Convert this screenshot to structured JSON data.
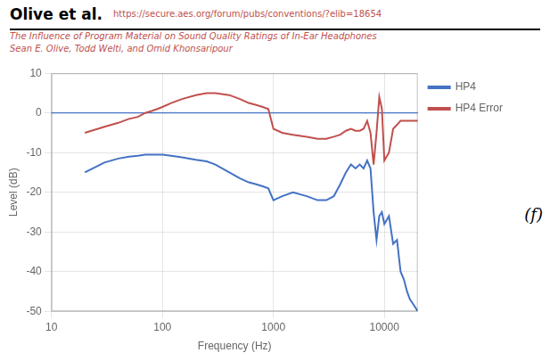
{
  "chart_data": {
    "type": "line",
    "title": "Olive et al.",
    "subtitle": [
      "The Influence of Program Material on Sound Quality Ratings of In-Ear Headphones",
      "Sean E. Olive, Todd Welti, and Omid Khonsaripour"
    ],
    "annotations": [
      {
        "text": "https://secure.aes.org/forum/pubs/conventions/?elib=18654"
      },
      {
        "text": "(f)"
      },
      {
        "y": 0,
        "color": "#4472C4"
      }
    ],
    "x_label": "Frequency (Hz)",
    "y_label": "Level (dB)",
    "log": "x",
    "x": [
      20,
      30,
      40,
      50,
      60,
      70,
      80,
      90,
      100,
      120,
      150,
      200,
      250,
      300,
      400,
      500,
      600,
      700,
      800,
      900,
      1000,
      1200,
      1500,
      2000,
      2500,
      3000,
      3500,
      4000,
      4500,
      5000,
      5500,
      6000,
      6500,
      7000,
      7500,
      8000,
      8500,
      9000,
      9500,
      10000,
      11000,
      12000,
      13000,
      14000,
      15000,
      16000,
      17000,
      18000,
      20000
    ],
    "series": [
      {
        "name": "HP4",
        "color": "#4472C4",
        "values": [
          -15,
          -12.5,
          -11.5,
          -11,
          -10.8,
          -10.5,
          -10.5,
          -10.5,
          -10.5,
          -10.8,
          -11.2,
          -11.8,
          -12.2,
          -13,
          -15,
          -16.5,
          -17.5,
          -18,
          -18.5,
          -19,
          -22,
          -21,
          -20,
          -21,
          -22,
          -22,
          -21,
          -18,
          -15,
          -13,
          -14,
          -13,
          -14,
          -12,
          -14,
          -25,
          -32,
          -26,
          -25,
          -28,
          -26,
          -33,
          -32,
          -40,
          -42,
          -45,
          -47,
          -48,
          -50
        ]
      },
      {
        "name": "HP4 Error",
        "color": "#C0504D",
        "values": [
          -5,
          -3.5,
          -2.5,
          -1.5,
          -1,
          0,
          0.5,
          1,
          1.5,
          2.5,
          3.5,
          4.5,
          5,
          5,
          4.5,
          3.5,
          2.5,
          2,
          1.5,
          1,
          -4,
          -5,
          -5.5,
          -6,
          -6.5,
          -6.5,
          -6,
          -5.5,
          -4.5,
          -4,
          -4.5,
          -4.5,
          -4,
          -2,
          -5,
          -13,
          -5,
          4,
          1,
          -12,
          -10,
          -4,
          -3,
          -2,
          -2,
          -2,
          -2,
          -2,
          -2
        ]
      }
    ],
    "xlim": [
      10,
      20000
    ],
    "xticks": [
      10,
      100,
      1000,
      10000
    ],
    "ylim": [
      -50,
      10
    ],
    "yticks": [
      -50,
      -40,
      -30,
      -20,
      -10,
      0,
      10
    ],
    "grid": true,
    "legend": "right"
  }
}
